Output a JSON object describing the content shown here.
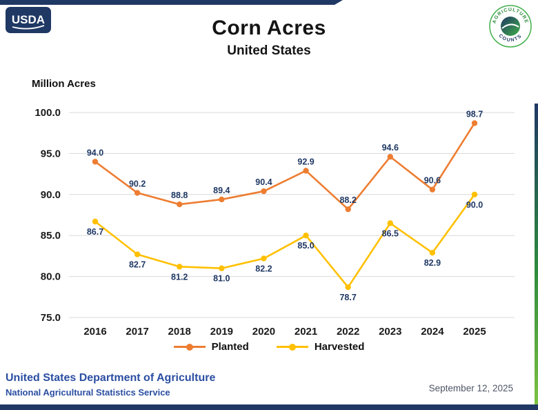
{
  "header": {
    "title": "Corn Acres",
    "subtitle": "United States",
    "usda_logo_text": "USDA",
    "aglogo_top": "AGRICULTURE",
    "aglogo_bottom": "COUNTS"
  },
  "chart_data": {
    "type": "line",
    "title": "Corn Acres",
    "subtitle": "United States",
    "ylabel": "Million Acres",
    "xlabel": "",
    "categories": [
      "2016",
      "2017",
      "2018",
      "2019",
      "2020",
      "2021",
      "2022",
      "2023",
      "2024",
      "2025"
    ],
    "series": [
      {
        "name": "Planted",
        "color": "#ED7D31",
        "label_position": "above",
        "values": [
          94.0,
          90.2,
          88.8,
          89.4,
          90.4,
          92.9,
          88.2,
          94.6,
          90.6,
          98.7
        ]
      },
      {
        "name": "Harvested",
        "color": "#FFC000",
        "label_position": "below",
        "values": [
          86.7,
          82.7,
          81.2,
          81.0,
          82.2,
          85.0,
          78.7,
          86.5,
          82.9,
          90.0
        ]
      }
    ],
    "ylim": [
      75.0,
      100.0
    ],
    "yticks": [
      100.0,
      95.0,
      90.0,
      85.0,
      80.0,
      75.0
    ],
    "grid": true,
    "legend_position": "bottom",
    "label_color": "#1F3864",
    "gridline_color": "#D9D9D9"
  },
  "footer": {
    "department": "United States Department of Agriculture",
    "agency": "National Agricultural Statistics Service",
    "date": "September 12, 2025"
  },
  "colors": {
    "accent_navy": "#1F3864",
    "footer_blue": "#2B4EA2",
    "planted_orange": "#ED7D31",
    "harvested_yellow": "#FFC000",
    "aglogo_green": "#3FAE49"
  }
}
